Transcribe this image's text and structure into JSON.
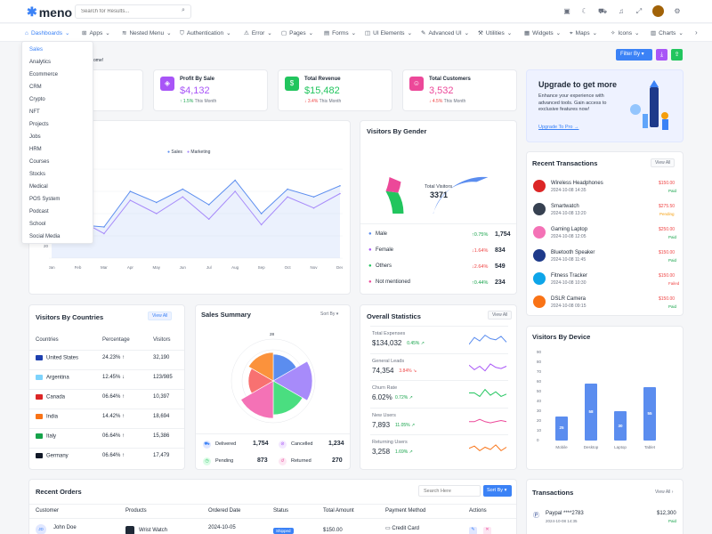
{
  "header": {
    "logo": "meno",
    "search_placeholder": "Search for Results..."
  },
  "nav": {
    "items": [
      {
        "label": "Dashboards",
        "icon": "home-icon"
      },
      {
        "label": "Apps",
        "icon": "grid-icon"
      },
      {
        "label": "Nested Menu",
        "icon": "layers-icon"
      },
      {
        "label": "Authentication",
        "icon": "shield-icon"
      },
      {
        "label": "Error",
        "icon": "alert-icon"
      },
      {
        "label": "Pages",
        "icon": "file-icon"
      },
      {
        "label": "Forms",
        "icon": "form-icon"
      },
      {
        "label": "UI Elements",
        "icon": "box-icon"
      },
      {
        "label": "Advanced UI",
        "icon": "edit-icon"
      },
      {
        "label": "Utilities",
        "icon": "tool-icon"
      },
      {
        "label": "Widgets",
        "icon": "widget-icon"
      },
      {
        "label": "Maps",
        "icon": "map-icon"
      },
      {
        "label": "Icons",
        "icon": "icons-icon"
      },
      {
        "label": "Charts",
        "icon": "chart-icon"
      }
    ]
  },
  "dropdown": [
    "Sales",
    "Analytics",
    "Ecommerce",
    "CRM",
    "Crypto",
    "NFT",
    "Projects",
    "Jobs",
    "HRM",
    "Courses",
    "Stocks",
    "Medical",
    "POS System",
    "Podcast",
    "School",
    "Social Media"
  ],
  "welcome": {
    "name_fragment": "bra",
    "sub_fragment": "ome!"
  },
  "filter_button": "Filter By",
  "stats": [
    {
      "label": "",
      "value": "",
      "change": ""
    },
    {
      "label": "Profit By Sale",
      "value": "$4,132",
      "change": "1.5%",
      "period": "This Month"
    },
    {
      "label": "Total Revenue",
      "value": "$15,482",
      "change": "3.4%",
      "period": "This Month"
    },
    {
      "label": "Total Customers",
      "value": "3,532",
      "change": "4.5%",
      "period": "This Month"
    }
  ],
  "upgrade": {
    "title": "Upgrade to get more",
    "text": "Enhance your experience with advanced tools. Gain access to exclusive features now!",
    "link": "Upgrade To Pro →"
  },
  "sales_chart": {
    "legend_sales": "Sales",
    "legend_marketing": "Marketing",
    "months": [
      "Jan",
      "Feb",
      "Mar",
      "Apr",
      "May",
      "Jun",
      "Jul",
      "Aug",
      "Sep",
      "Oct",
      "Nov",
      "Dec"
    ],
    "ytick": "20"
  },
  "chart_data": [
    {
      "type": "line",
      "x": [
        "Jan",
        "Feb",
        "Mar",
        "Apr",
        "May",
        "Jun",
        "Jul",
        "Aug",
        "Sep",
        "Oct",
        "Nov",
        "Dec"
      ],
      "series": [
        {
          "name": "Sales",
          "values": [
            22,
            30,
            28,
            60,
            50,
            62,
            48,
            70,
            40,
            62,
            55,
            65
          ],
          "color": "#5b8def"
        },
        {
          "name": "Marketing",
          "values": [
            25,
            35,
            22,
            52,
            40,
            55,
            35,
            60,
            30,
            55,
            45,
            58
          ],
          "color": "#a78bfa"
        }
      ]
    },
    {
      "type": "pie",
      "title": "Visitors By Gender",
      "categories": [
        "Male",
        "Female",
        "Others",
        "Not mentioned"
      ],
      "values": [
        1754,
        834,
        549,
        234
      ],
      "colors": [
        "#5b8def",
        "#a855f7",
        "#22c55e",
        "#ec4899"
      ]
    },
    {
      "type": "bar",
      "title": "Visitors By Device",
      "categories": [
        "Mobile",
        "Desktop",
        "Laptop",
        "Tablet"
      ],
      "values": [
        25,
        58,
        30,
        55
      ],
      "ylim": [
        0,
        90
      ]
    }
  ],
  "gender": {
    "title": "Visitors By Gender",
    "center_label": "Total Visitors",
    "center_value": "3371",
    "rows": [
      {
        "label": "Male",
        "change": "0.75%",
        "value": "1,754",
        "dir": "up",
        "color": "#5b8def"
      },
      {
        "label": "Female",
        "change": "1.64%",
        "value": "834",
        "dir": "down",
        "color": "#a855f7"
      },
      {
        "label": "Others",
        "change": "2.64%",
        "value": "549",
        "dir": "down",
        "color": "#22c55e"
      },
      {
        "label": "Not mentioned",
        "change": "0.44%",
        "value": "234",
        "dir": "up",
        "color": "#ec4899"
      }
    ]
  },
  "transactions_recent": {
    "title": "Recent Transactions",
    "view_all": "View All",
    "items": [
      {
        "name": "Wireless Headphones",
        "date": "2024-10-08 14:35",
        "amount": "$150.00",
        "status": "Paid",
        "status_color": "#16a34a",
        "icon_color": "#dc2626"
      },
      {
        "name": "Smartwatch",
        "date": "2024-10-08 13:20",
        "amount": "$275.50",
        "status": "Pending",
        "status_color": "#f59e0b",
        "icon_color": "#374151"
      },
      {
        "name": "Gaming Laptop",
        "date": "2024-10-08 12:05",
        "amount": "$250.00",
        "status": "Paid",
        "status_color": "#16a34a",
        "icon_color": "#f472b6"
      },
      {
        "name": "Bluetooth Speaker",
        "date": "2024-10-08 11:45",
        "amount": "$150.00",
        "status": "Paid",
        "status_color": "#16a34a",
        "icon_color": "#1e3a8a"
      },
      {
        "name": "Fitness Tracker",
        "date": "2024-10-08 10:30",
        "amount": "$150.00",
        "status": "Failed",
        "status_color": "#ef4444",
        "icon_color": "#0ea5e9"
      },
      {
        "name": "DSLR Camera",
        "date": "2024-10-08 09:15",
        "amount": "$150.00",
        "status": "Paid",
        "status_color": "#16a34a",
        "icon_color": "#f97316"
      }
    ]
  },
  "countries": {
    "title": "Visitors By Countries",
    "view_all": "View All",
    "headers": [
      "Countries",
      "Percentage",
      "Visitors"
    ],
    "rows": [
      {
        "name": "United States",
        "pct": "24.23%",
        "dir": "up",
        "visitors": "32,190",
        "flag": "#1e40af"
      },
      {
        "name": "Argentina",
        "pct": "12.45%",
        "dir": "down",
        "visitors": "123/985",
        "flag": "#7dd3fc"
      },
      {
        "name": "Canada",
        "pct": "06.64%",
        "dir": "up",
        "visitors": "10,397",
        "flag": "#dc2626"
      },
      {
        "name": "India",
        "pct": "14.42%",
        "dir": "up",
        "visitors": "18,694",
        "flag": "#f97316"
      },
      {
        "name": "Italy",
        "pct": "06.64%",
        "dir": "up",
        "visitors": "15,386",
        "flag": "#16a34a"
      },
      {
        "name": "Germany",
        "pct": "06.64%",
        "dir": "up",
        "visitors": "17,479",
        "flag": "#111827"
      }
    ]
  },
  "sales_summary": {
    "title": "Sales Summary",
    "sort": "Sort By",
    "top_label": "28",
    "stats": [
      {
        "label": "Delivered",
        "value": "1,754"
      },
      {
        "label": "Cancelled",
        "value": "1,234"
      },
      {
        "label": "Pending",
        "value": "873"
      },
      {
        "label": "Returned",
        "value": "270"
      }
    ]
  },
  "overall": {
    "title": "Overall Statistics",
    "view_all": "View All",
    "rows": [
      {
        "label": "Total Expenses",
        "value": "$134,032",
        "change": "0.45%",
        "dir": "up",
        "color": "#5b8def"
      },
      {
        "label": "General Leads",
        "value": "74,354",
        "change": "3.84%",
        "dir": "down",
        "color": "#a855f7"
      },
      {
        "label": "Churn Rate",
        "value": "6.02%",
        "change": "0.72%",
        "dir": "up",
        "color": "#22c55e"
      },
      {
        "label": "New Users",
        "value": "7,893",
        "change": "11.05%",
        "dir": "up",
        "color": "#ec4899"
      },
      {
        "label": "Returning Users",
        "value": "3,258",
        "change": "1.69%",
        "dir": "up",
        "color": "#f97316"
      }
    ]
  },
  "device": {
    "title": "Visitors By Device",
    "yticks": [
      "90",
      "80",
      "70",
      "60",
      "50",
      "40",
      "30",
      "20",
      "10",
      "0"
    ]
  },
  "orders": {
    "title": "Recent Orders",
    "search_placeholder": "Search Here",
    "sort": "Sort By",
    "headers": [
      "Customer",
      "Products",
      "Ordered Date",
      "Status",
      "Total Amount",
      "Payment Method",
      "Actions"
    ],
    "row": {
      "customer": "John Doe",
      "product": "Wrist Watch",
      "date": "2024-10-05",
      "status": "Shipped",
      "amount": "$150.00",
      "method": "Credit Card",
      "initials": "JD"
    }
  },
  "transactions": {
    "title": "Transactions",
    "view_all": "View All",
    "item": {
      "name": "Paypal ****2783",
      "date": "2024-10-08 14:35",
      "amount": "$12,300",
      "status": "Paid"
    }
  }
}
